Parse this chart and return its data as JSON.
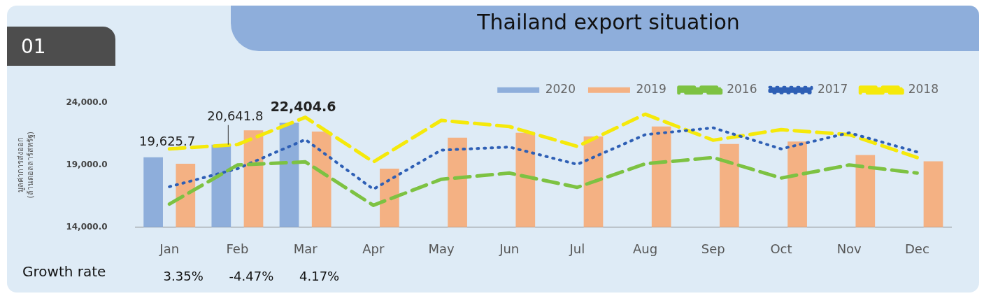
{
  "chart_data": {
    "type": "bar",
    "title": "Thailand export situation",
    "ylabel": "มูลค่าการส่งออก (ล้านดอลลาร์สหรัฐ)",
    "categories": [
      "Jan",
      "Feb",
      "Mar",
      "Apr",
      "May",
      "Jun",
      "Jul",
      "Aug",
      "Sep",
      "Oct",
      "Nov",
      "Dec"
    ],
    "series": [
      {
        "name": "2020",
        "color": "#8eaedb",
        "values": [
          19625.7,
          20641.8,
          22404.6,
          null,
          null,
          null,
          null,
          null,
          null,
          null,
          null,
          null
        ],
        "value_labels": [
          "19,625.7",
          "20,641.8",
          "22,404.6",
          null,
          null,
          null,
          null,
          null,
          null,
          null,
          null,
          null
        ]
      },
      {
        "name": "2019",
        "color": "#f4b183",
        "values": [
          19100,
          21800,
          21700,
          18700,
          21200,
          21600,
          21300,
          22100,
          20700,
          20900,
          19800,
          19300
        ]
      },
      {
        "name": "2016",
        "type": "line",
        "color": "#7dc242",
        "line_style": "dashed",
        "values": [
          15850,
          19000,
          19250,
          15750,
          17850,
          18350,
          17200,
          19100,
          19600,
          17950,
          19000,
          18350
        ]
      },
      {
        "name": "2017",
        "type": "line",
        "color": "#2e5fb5",
        "line_style": "dotted",
        "values": [
          17250,
          18700,
          21050,
          17050,
          20200,
          20450,
          19050,
          21450,
          22000,
          20300,
          21600,
          20050
        ]
      },
      {
        "name": "2018",
        "type": "line",
        "color": "#f5e90a",
        "line_style": "dashed",
        "values": [
          20300,
          20650,
          22850,
          19250,
          22600,
          22100,
          20500,
          23100,
          21000,
          21850,
          21450,
          19600
        ]
      }
    ],
    "ylim": [
      14000,
      24000
    ],
    "yticks": [
      {
        "value": 14000,
        "label": "14,000.0"
      },
      {
        "value": 19000,
        "label": "19,000.0"
      },
      {
        "value": 24000,
        "label": "24,000.0"
      }
    ],
    "grid": false,
    "legend": "top right",
    "marker": "none",
    "annotations": [
      "01",
      "Growth rate",
      "3.35%",
      "-4.47%",
      "4.17%"
    ]
  }
}
